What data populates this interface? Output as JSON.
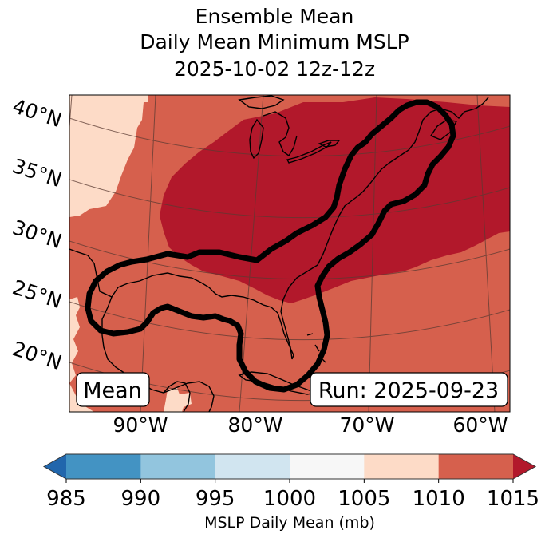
{
  "chart_data": {
    "type": "heatmap",
    "title_lines": [
      "Ensemble Mean",
      "Daily Mean Minimum MSLP",
      "2025-10-02 12z-12z"
    ],
    "map": {
      "projection": "conic (Lambert-like)",
      "lat_ticks": [
        "40°N",
        "35°N",
        "30°N",
        "25°N",
        "20°N"
      ],
      "lon_ticks": [
        "90°W",
        "80°W",
        "70°W",
        "60°W"
      ],
      "extent_lon": [
        -97,
        -58
      ],
      "extent_lat": [
        17,
        41
      ],
      "gridlines": true,
      "coastlines": true,
      "field_description": "MSLP daily mean; values mostly 1010-1015 (sw/south), >1015 over eastern US, Great Lakes and western Atlantic; 1005-1010 in far north-west corner and patches near Yucatan/western Mexico",
      "contour": "thick black closed contour enclosing Gulf of Mexico, Florida and US east coast to Nova Scotia"
    },
    "annotations": [
      {
        "text": "Mean",
        "position": "bottom-left"
      },
      {
        "text": "Run: 2025-09-23",
        "position": "bottom-right"
      }
    ],
    "colorbar": {
      "label": "MSLP Daily Mean (mb)",
      "ticks": [
        "985",
        "990",
        "995",
        "1000",
        "1005",
        "1010",
        "1015"
      ],
      "bounds": [
        985,
        990,
        995,
        1000,
        1005,
        1010,
        1015
      ],
      "colors": [
        "#4393c3",
        "#92c5de",
        "#d1e5f0",
        "#f7f7f7",
        "#fddbc7",
        "#d6604d"
      ],
      "under_color": "#2166ac",
      "over_color": "#b2182b",
      "extend": "both",
      "orientation": "horizontal",
      "placement": "bottom"
    },
    "regions": [
      {
        "name": "over-1015",
        "value_range": "> 1015",
        "color": "#b2182b"
      },
      {
        "name": "1010-1015",
        "value_range": "1010-1015",
        "color": "#d6604d"
      },
      {
        "name": "1005-1010",
        "value_range": "1005-1010",
        "color": "#fddbc7"
      }
    ]
  }
}
